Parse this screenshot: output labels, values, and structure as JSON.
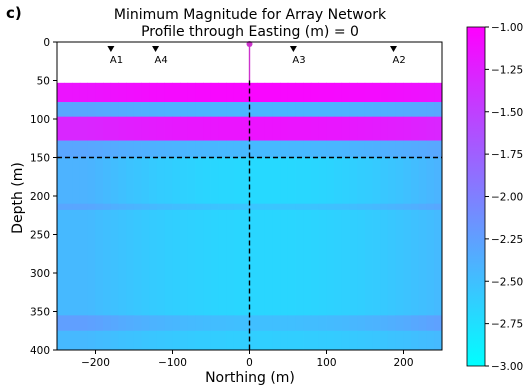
{
  "panel_label": "c)",
  "chart_data": {
    "type": "heatmap",
    "title": "Minimum Magnitude for Array Network",
    "subtitle": "Profile through Easting (m) = 0",
    "xlabel": "Northing (m)",
    "ylabel": "Depth (m)",
    "xlim": [
      -250,
      250
    ],
    "ylim": [
      400,
      0
    ],
    "x_ticks": [
      -200,
      -100,
      0,
      100,
      200
    ],
    "x_tick_labels": [
      "−200",
      "−100",
      "0",
      "100",
      "200"
    ],
    "y_ticks": [
      0,
      50,
      100,
      150,
      200,
      250,
      300,
      350,
      400
    ],
    "y_tick_labels": [
      "0",
      "50",
      "100",
      "150",
      "200",
      "250",
      "300",
      "350",
      "400"
    ],
    "colorbar": {
      "range": [
        -3.0,
        -1.0
      ],
      "ticks": [
        -1.0,
        -1.25,
        -1.5,
        -1.75,
        -2.0,
        -2.25,
        -2.5,
        -2.75,
        -3.0
      ],
      "tick_labels": [
        "−1.00",
        "−1.25",
        "−1.50",
        "−1.75",
        "−2.00",
        "−2.25",
        "−2.50",
        "−2.75",
        "−3.00"
      ],
      "colormap": "cool",
      "colors": {
        "low": "#00ffff",
        "high": "#ff00ff"
      }
    },
    "stations": [
      {
        "name": "A1",
        "northing": -180
      },
      {
        "name": "A4",
        "northing": -122
      },
      {
        "name": "A3",
        "northing": 57
      },
      {
        "name": "A2",
        "northing": 187
      }
    ],
    "data_depth_range": [
      50,
      400
    ],
    "bands": [
      {
        "depth_from": 53,
        "depth_to": 78,
        "center": -1.05,
        "edge": -1.15
      },
      {
        "depth_from": 78,
        "depth_to": 97,
        "center": -2.42,
        "edge": -2.3
      },
      {
        "depth_from": 97,
        "depth_to": 128,
        "center": -1.15,
        "edge": -1.3
      },
      {
        "depth_from": 128,
        "depth_to": 150,
        "center": -2.45,
        "edge": -2.3
      },
      {
        "depth_from": 150,
        "depth_to": 210,
        "center": -2.7,
        "edge": -2.4
      },
      {
        "depth_from": 210,
        "depth_to": 218,
        "center": -2.55,
        "edge": -2.3
      },
      {
        "depth_from": 218,
        "depth_to": 355,
        "center": -2.68,
        "edge": -2.45
      },
      {
        "depth_from": 355,
        "depth_to": 375,
        "center": -2.5,
        "edge": -2.25
      },
      {
        "depth_from": 375,
        "depth_to": 400,
        "center": -2.62,
        "edge": -2.45
      }
    ],
    "vertical_line_northing": 0,
    "horizontal_line_depth": 150,
    "line_color": "#000000",
    "marker_color": "#cc33cc"
  }
}
